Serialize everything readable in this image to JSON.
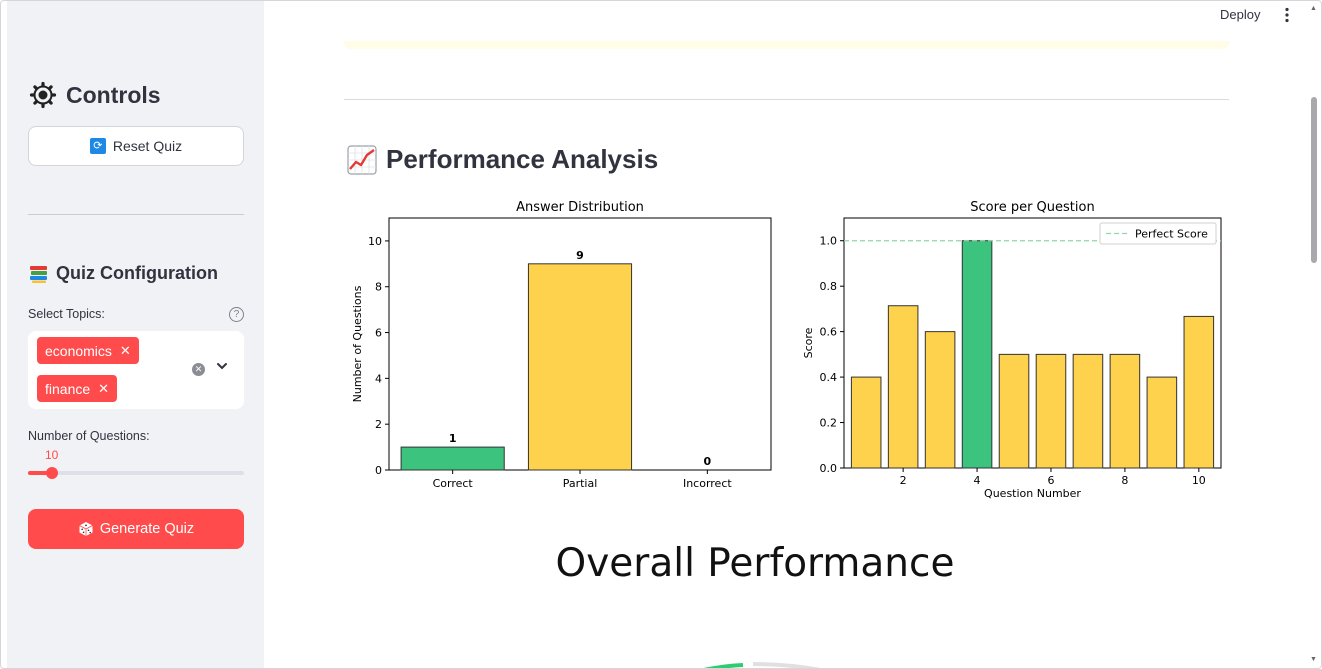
{
  "topbar": {
    "deploy_label": "Deploy"
  },
  "sidebar": {
    "controls_title": "Controls",
    "reset_label": "Reset Quiz",
    "config_title": "Quiz Configuration",
    "topics_label": "Select Topics:",
    "topics": [
      "economics",
      "finance"
    ],
    "num_questions_label": "Number of Questions:",
    "num_questions_value": "10",
    "slider_fraction": 0.11,
    "generate_label": "Generate Quiz"
  },
  "main": {
    "section_title": "Performance Analysis",
    "overall_title": "Overall Performance"
  },
  "colors": {
    "accent": "#ff4b4b",
    "bar_green": "#3cc37e",
    "bar_yellow": "#ffd24d",
    "perfect_line": "#8fd6a8"
  },
  "chart_data": [
    {
      "type": "bar",
      "title": "Answer Distribution",
      "xlabel": "",
      "ylabel": "Number of Questions",
      "categories": [
        "Correct",
        "Partial",
        "Incorrect"
      ],
      "values": [
        1,
        9,
        0
      ],
      "data_labels": [
        "1",
        "9",
        "0"
      ],
      "bar_colors": [
        "#3cc37e",
        "#ffd24d",
        "#ff6b6b"
      ],
      "ylim": [
        0,
        11
      ],
      "yticks": [
        "0",
        "2",
        "4",
        "6",
        "8",
        "10"
      ],
      "grid": false
    },
    {
      "type": "bar",
      "title": "Score per Question",
      "xlabel": "Question Number",
      "ylabel": "Score",
      "x": [
        1,
        2,
        3,
        4,
        5,
        6,
        7,
        8,
        9,
        10
      ],
      "values": [
        0.4,
        0.714,
        0.6,
        1.0,
        0.5,
        0.5,
        0.5,
        0.5,
        0.4,
        0.667
      ],
      "bar_colors": [
        "#ffd24d",
        "#ffd24d",
        "#ffd24d",
        "#3cc37e",
        "#ffd24d",
        "#ffd24d",
        "#ffd24d",
        "#ffd24d",
        "#ffd24d",
        "#ffd24d"
      ],
      "xticks": [
        "2",
        "4",
        "6",
        "8",
        "10"
      ],
      "xtick_values": [
        2,
        4,
        6,
        8,
        10
      ],
      "yticks": [
        "0.0",
        "0.2",
        "0.4",
        "0.6",
        "0.8",
        "1.0"
      ],
      "ylim": [
        0,
        1.1
      ],
      "reference_line": {
        "y": 1.0,
        "label": "Perfect Score"
      },
      "legend": "top-right",
      "grid": false
    }
  ]
}
